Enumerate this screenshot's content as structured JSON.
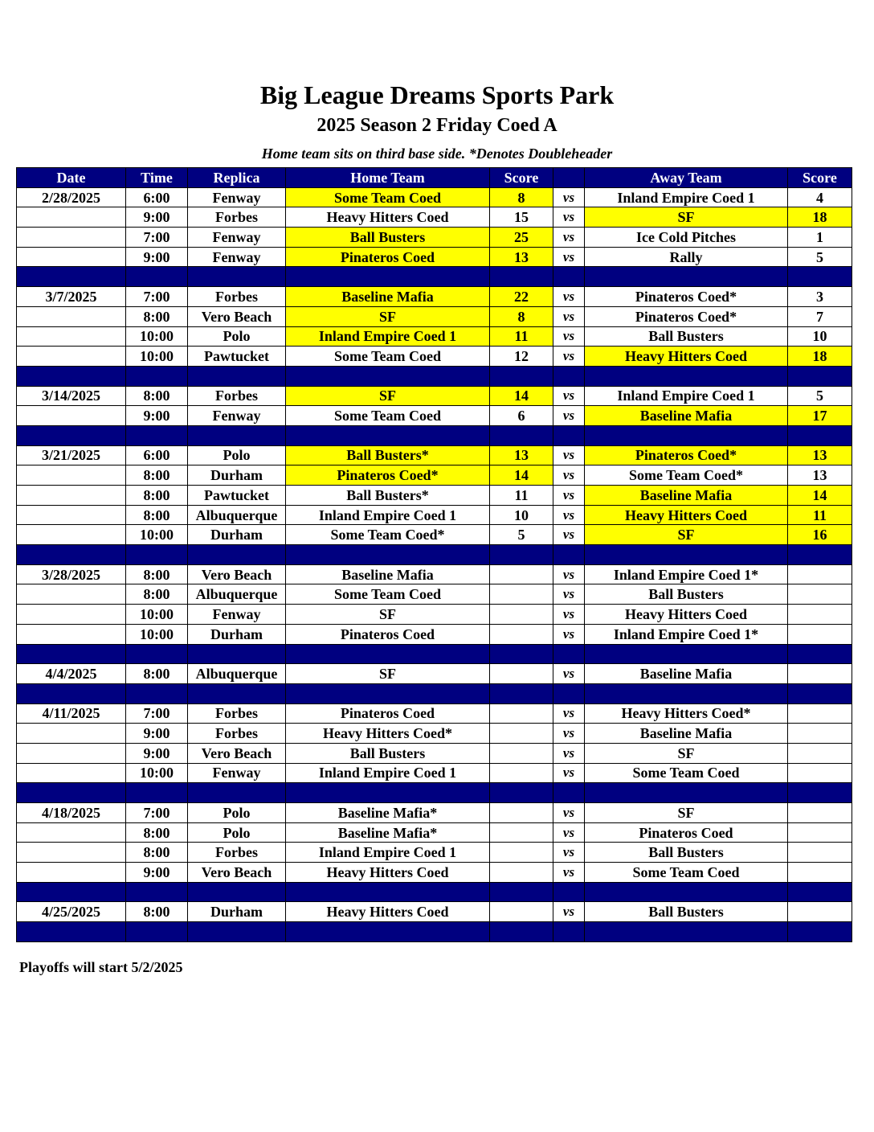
{
  "title": "Big League Dreams Sports Park",
  "subtitle": "2025 Season 2 Friday Coed A",
  "note": "Home team sits on third base side.  *Denotes Doubleheader",
  "columns": [
    "Date",
    "Time",
    "Replica",
    "Home Team",
    "Score",
    "",
    "Away Team",
    "Score"
  ],
  "vs_label": "vs",
  "highlight_color": "#ffff00",
  "header_color": "#000080",
  "weeks": [
    {
      "date": "2/28/2025",
      "games": [
        {
          "time": "6:00",
          "replica": "Fenway",
          "home": "Some Team Coed",
          "home_score": "8",
          "away": "Inland Empire Coed 1",
          "away_score": "4",
          "winner": "home"
        },
        {
          "time": "9:00",
          "replica": "Forbes",
          "home": "Heavy Hitters Coed",
          "home_score": "15",
          "away": "SF",
          "away_score": "18",
          "winner": "away"
        },
        {
          "time": "7:00",
          "replica": "Fenway",
          "home": "Ball Busters",
          "home_score": "25",
          "away": "Ice Cold Pitches",
          "away_score": "1",
          "winner": "home"
        },
        {
          "time": "9:00",
          "replica": "Fenway",
          "home": "Pinateros Coed",
          "home_score": "13",
          "away": "Rally",
          "away_score": "5",
          "winner": "home"
        }
      ]
    },
    {
      "date": "3/7/2025",
      "games": [
        {
          "time": "7:00",
          "replica": "Forbes",
          "home": "Baseline Mafia",
          "home_score": "22",
          "away": "Pinateros Coed*",
          "away_score": "3",
          "winner": "home"
        },
        {
          "time": "8:00",
          "replica": "Vero Beach",
          "home": "SF",
          "home_score": "8",
          "away": "Pinateros Coed*",
          "away_score": "7",
          "winner": "home"
        },
        {
          "time": "10:00",
          "replica": "Polo",
          "home": "Inland Empire Coed 1",
          "home_score": "11",
          "away": "Ball Busters",
          "away_score": "10",
          "winner": "home"
        },
        {
          "time": "10:00",
          "replica": "Pawtucket",
          "home": "Some Team Coed",
          "home_score": "12",
          "away": "Heavy Hitters Coed",
          "away_score": "18",
          "winner": "away"
        }
      ]
    },
    {
      "date": "3/14/2025",
      "games": [
        {
          "time": "8:00",
          "replica": "Forbes",
          "home": "SF",
          "home_score": "14",
          "away": "Inland Empire Coed 1",
          "away_score": "5",
          "winner": "home"
        },
        {
          "time": "9:00",
          "replica": "Fenway",
          "home": "Some Team Coed",
          "home_score": "6",
          "away": "Baseline Mafia",
          "away_score": "17",
          "winner": "away"
        }
      ]
    },
    {
      "date": "3/21/2025",
      "games": [
        {
          "time": "6:00",
          "replica": "Polo",
          "home": "Ball Busters*",
          "home_score": "13",
          "away": "Pinateros Coed*",
          "away_score": "13",
          "winner": "both"
        },
        {
          "time": "8:00",
          "replica": "Durham",
          "home": "Pinateros Coed*",
          "home_score": "14",
          "away": "Some Team Coed*",
          "away_score": "13",
          "winner": "home"
        },
        {
          "time": "8:00",
          "replica": "Pawtucket",
          "home": "Ball Busters*",
          "home_score": "11",
          "away": "Baseline Mafia",
          "away_score": "14",
          "winner": "away"
        },
        {
          "time": "8:00",
          "replica": "Albuquerque",
          "home": "Inland Empire Coed 1",
          "home_score": "10",
          "away": "Heavy Hitters Coed",
          "away_score": "11",
          "winner": "away"
        },
        {
          "time": "10:00",
          "replica": "Durham",
          "home": "Some Team Coed*",
          "home_score": "5",
          "away": "SF",
          "away_score": "16",
          "winner": "away"
        }
      ]
    },
    {
      "date": "3/28/2025",
      "games": [
        {
          "time": "8:00",
          "replica": "Vero Beach",
          "home": "Baseline Mafia",
          "home_score": "",
          "away": "Inland Empire Coed 1*",
          "away_score": "",
          "winner": ""
        },
        {
          "time": "8:00",
          "replica": "Albuquerque",
          "home": "Some Team Coed",
          "home_score": "",
          "away": "Ball Busters",
          "away_score": "",
          "winner": ""
        },
        {
          "time": "10:00",
          "replica": "Fenway",
          "home": "SF",
          "home_score": "",
          "away": "Heavy Hitters Coed",
          "away_score": "",
          "winner": ""
        },
        {
          "time": "10:00",
          "replica": "Durham",
          "home": "Pinateros Coed",
          "home_score": "",
          "away": "Inland Empire Coed 1*",
          "away_score": "",
          "winner": ""
        }
      ]
    },
    {
      "date": "4/4/2025",
      "games": [
        {
          "time": "8:00",
          "replica": "Albuquerque",
          "home": "SF",
          "home_score": "",
          "away": "Baseline Mafia",
          "away_score": "",
          "winner": ""
        }
      ]
    },
    {
      "date": "4/11/2025",
      "games": [
        {
          "time": "7:00",
          "replica": "Forbes",
          "home": "Pinateros Coed",
          "home_score": "",
          "away": "Heavy Hitters Coed*",
          "away_score": "",
          "winner": ""
        },
        {
          "time": "9:00",
          "replica": "Forbes",
          "home": "Heavy Hitters Coed*",
          "home_score": "",
          "away": "Baseline Mafia",
          "away_score": "",
          "winner": ""
        },
        {
          "time": "9:00",
          "replica": "Vero Beach",
          "home": "Ball Busters",
          "home_score": "",
          "away": "SF",
          "away_score": "",
          "winner": ""
        },
        {
          "time": "10:00",
          "replica": "Fenway",
          "home": "Inland Empire Coed 1",
          "home_score": "",
          "away": "Some Team Coed",
          "away_score": "",
          "winner": ""
        }
      ]
    },
    {
      "date": "4/18/2025",
      "games": [
        {
          "time": "7:00",
          "replica": "Polo",
          "home": "Baseline Mafia*",
          "home_score": "",
          "away": "SF",
          "away_score": "",
          "winner": ""
        },
        {
          "time": "8:00",
          "replica": "Polo",
          "home": "Baseline Mafia*",
          "home_score": "",
          "away": "Pinateros Coed",
          "away_score": "",
          "winner": ""
        },
        {
          "time": "8:00",
          "replica": "Forbes",
          "home": "Inland Empire Coed 1",
          "home_score": "",
          "away": "Ball Busters",
          "away_score": "",
          "winner": ""
        },
        {
          "time": "9:00",
          "replica": "Vero Beach",
          "home": "Heavy Hitters Coed",
          "home_score": "",
          "away": "Some Team Coed",
          "away_score": "",
          "winner": ""
        }
      ]
    },
    {
      "date": "4/25/2025",
      "games": [
        {
          "time": "8:00",
          "replica": "Durham",
          "home": "Heavy Hitters Coed",
          "home_score": "",
          "away": "Ball Busters",
          "away_score": "",
          "winner": ""
        }
      ]
    }
  ],
  "footer": "Playoffs will start 5/2/2025"
}
